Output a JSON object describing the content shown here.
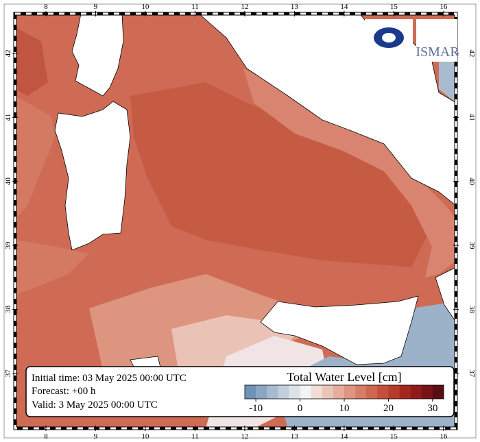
{
  "map": {
    "lonlim": [
      7.38,
      16.25
    ],
    "latlim": [
      36.14,
      42.62
    ],
    "lonticks": [
      8,
      9,
      10,
      11,
      12,
      13,
      14,
      15,
      16
    ],
    "latticks": [
      37,
      38,
      39,
      40,
      41,
      42
    ]
  },
  "logos": [
    "ISMAR"
  ],
  "info": {
    "initial": "Initial time: 03 May 2025 00:00 UTC",
    "forecast": "Forecast: +00 h",
    "valid": "Valid:  3 May 2025 00:00 UTC"
  },
  "colorbar": {
    "title": "Total Water Level [cm]",
    "range": [
      -12.5,
      32.5
    ],
    "ticks": [
      -10,
      0,
      10,
      20,
      30
    ],
    "colors": [
      "#6f93b8",
      "#8ba6c4",
      "#a6bbd0",
      "#c1cfdc",
      "#dbe2ea",
      "#f3f3f3",
      "#f1dcd6",
      "#ecc5b9",
      "#e6ad9c",
      "#df9581",
      "#d87d67",
      "#cf6650",
      "#c4503b",
      "#b83b2b",
      "#a6261f",
      "#8f1a1c",
      "#751319",
      "#5a0e14"
    ]
  }
}
